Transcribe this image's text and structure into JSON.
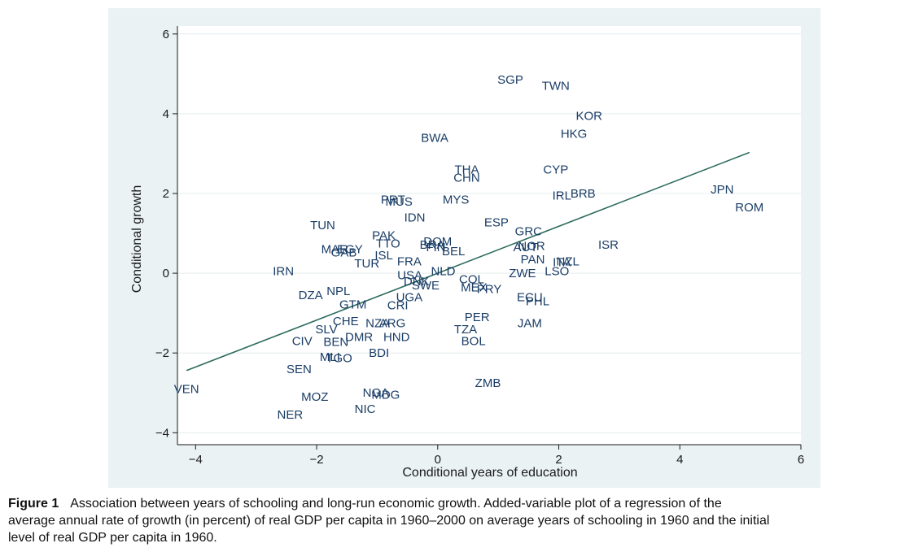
{
  "chart_data": {
    "type": "scatter",
    "xlabel": "Conditional years of education",
    "ylabel": "Conditional growth",
    "xlim": [
      -4.3,
      6.0
    ],
    "ylim": [
      -4.3,
      6.2
    ],
    "xticks": [
      -4,
      -2,
      0,
      2,
      4,
      6
    ],
    "yticks": [
      -4,
      -2,
      0,
      2,
      4,
      6
    ],
    "xtick_labels": [
      "−4",
      "−2",
      "0",
      "2",
      "4",
      "6"
    ],
    "ytick_labels": [
      "−4",
      "−2",
      "0",
      "2",
      "4",
      "6"
    ],
    "grid": "horizontal",
    "marker": "country-code text labels",
    "fit_line": {
      "x": [
        -4.15,
        5.15
      ],
      "y": [
        -2.44,
        3.03
      ],
      "color": "#2d6b5e"
    },
    "points": [
      {
        "label": "SGP",
        "x": 1.2,
        "y": 4.85
      },
      {
        "label": "TWN",
        "x": 1.95,
        "y": 4.7
      },
      {
        "label": "KOR",
        "x": 2.5,
        "y": 3.95
      },
      {
        "label": "HKG",
        "x": 2.25,
        "y": 3.5
      },
      {
        "label": "BWA",
        "x": -0.05,
        "y": 3.4
      },
      {
        "label": "THA",
        "x": 0.48,
        "y": 2.6
      },
      {
        "label": "CHN",
        "x": 0.48,
        "y": 2.4
      },
      {
        "label": "CYP",
        "x": 1.95,
        "y": 2.6
      },
      {
        "label": "IRL",
        "x": 2.05,
        "y": 1.95
      },
      {
        "label": "BRB",
        "x": 2.4,
        "y": 2.0
      },
      {
        "label": "JPN",
        "x": 4.7,
        "y": 2.1
      },
      {
        "label": "ROM",
        "x": 5.15,
        "y": 1.65
      },
      {
        "label": "PRT",
        "x": -0.74,
        "y": 1.85
      },
      {
        "label": "MUS",
        "x": -0.64,
        "y": 1.8
      },
      {
        "label": "MYS",
        "x": 0.3,
        "y": 1.85
      },
      {
        "label": "IDN",
        "x": -0.38,
        "y": 1.4
      },
      {
        "label": "ESP",
        "x": 0.97,
        "y": 1.28
      },
      {
        "label": "TUN",
        "x": -1.9,
        "y": 1.2
      },
      {
        "label": "GRC",
        "x": 1.5,
        "y": 1.05
      },
      {
        "label": "PAK",
        "x": -0.89,
        "y": 0.95
      },
      {
        "label": "TTO",
        "x": -0.82,
        "y": 0.75
      },
      {
        "label": "DOM",
        "x": 0.0,
        "y": 0.8
      },
      {
        "label": "BRA",
        "x": -0.09,
        "y": 0.72
      },
      {
        "label": "NOR",
        "x": 1.55,
        "y": 0.68
      },
      {
        "label": "AUT",
        "x": 1.45,
        "y": 0.65
      },
      {
        "label": "ISR",
        "x": 2.82,
        "y": 0.72
      },
      {
        "label": "MAR",
        "x": -1.7,
        "y": 0.6
      },
      {
        "label": "EGY",
        "x": -1.45,
        "y": 0.6
      },
      {
        "label": "GAB",
        "x": -1.55,
        "y": 0.52
      },
      {
        "label": "ISL",
        "x": -0.89,
        "y": 0.45
      },
      {
        "label": "FIN",
        "x": -0.03,
        "y": 0.65
      },
      {
        "label": "BEL",
        "x": 0.26,
        "y": 0.55
      },
      {
        "label": "FRA",
        "x": -0.47,
        "y": 0.3
      },
      {
        "label": "TUR",
        "x": -1.17,
        "y": 0.25
      },
      {
        "label": "PAN",
        "x": 1.57,
        "y": 0.35
      },
      {
        "label": "ITA",
        "x": 2.05,
        "y": 0.28
      },
      {
        "label": "NZL",
        "x": 2.15,
        "y": 0.3
      },
      {
        "label": "LSO",
        "x": 1.97,
        "y": 0.05
      },
      {
        "label": "IRN",
        "x": -2.55,
        "y": 0.05
      },
      {
        "label": "USA",
        "x": -0.46,
        "y": -0.05
      },
      {
        "label": "NLD",
        "x": 0.09,
        "y": 0.05
      },
      {
        "label": "ZWE",
        "x": 1.4,
        "y": 0.0
      },
      {
        "label": "DNK",
        "x": -0.35,
        "y": -0.2
      },
      {
        "label": "SWE",
        "x": -0.2,
        "y": -0.3
      },
      {
        "label": "COL",
        "x": 0.56,
        "y": -0.15
      },
      {
        "label": "MEX",
        "x": 0.6,
        "y": -0.35
      },
      {
        "label": "PRY",
        "x": 0.85,
        "y": -0.4
      },
      {
        "label": "DZA",
        "x": -2.1,
        "y": -0.55
      },
      {
        "label": "NPL",
        "x": -1.64,
        "y": -0.45
      },
      {
        "label": "ECU",
        "x": 1.52,
        "y": -0.6
      },
      {
        "label": "PHL",
        "x": 1.65,
        "y": -0.7
      },
      {
        "label": "GTM",
        "x": -1.4,
        "y": -0.78
      },
      {
        "label": "UGA",
        "x": -0.47,
        "y": -0.6
      },
      {
        "label": "CRI",
        "x": -0.66,
        "y": -0.8
      },
      {
        "label": "PER",
        "x": 0.65,
        "y": -1.1
      },
      {
        "label": "JAM",
        "x": 1.52,
        "y": -1.25
      },
      {
        "label": "CHE",
        "x": -1.52,
        "y": -1.2
      },
      {
        "label": "NZA",
        "x": -0.99,
        "y": -1.25
      },
      {
        "label": "ARG",
        "x": -0.75,
        "y": -1.25
      },
      {
        "label": "TZA",
        "x": 0.46,
        "y": -1.4
      },
      {
        "label": "SLV",
        "x": -1.84,
        "y": -1.4
      },
      {
        "label": "DMR",
        "x": -1.3,
        "y": -1.6
      },
      {
        "label": "HND",
        "x": -0.68,
        "y": -1.6
      },
      {
        "label": "BOL",
        "x": 0.59,
        "y": -1.7
      },
      {
        "label": "BEN",
        "x": -1.68,
        "y": -1.72
      },
      {
        "label": "CIV",
        "x": -2.24,
        "y": -1.7
      },
      {
        "label": "BDI",
        "x": -0.97,
        "y": -2.0
      },
      {
        "label": "MLI",
        "x": -1.78,
        "y": -2.1
      },
      {
        "label": "TGO",
        "x": -1.63,
        "y": -2.13
      },
      {
        "label": "SEN",
        "x": -2.29,
        "y": -2.4
      },
      {
        "label": "ZMB",
        "x": 0.83,
        "y": -2.75
      },
      {
        "label": "VEN",
        "x": -4.15,
        "y": -2.9
      },
      {
        "label": "NGA",
        "x": -1.02,
        "y": -3.0
      },
      {
        "label": "MDG",
        "x": -0.86,
        "y": -3.05
      },
      {
        "label": "MOZ",
        "x": -2.03,
        "y": -3.1
      },
      {
        "label": "NIC",
        "x": -1.2,
        "y": -3.4
      },
      {
        "label": "NER",
        "x": -2.44,
        "y": -3.55
      }
    ]
  },
  "caption": {
    "label": "Figure 1",
    "line1": "Association between years of schooling and long-run economic growth. Added-variable plot of a regression of the",
    "line2": "average annual rate of growth (in percent) of real GDP per capita in 1960–2000 on average years of schooling in 1960 and the initial",
    "line3": "level of real GDP per capita in 1960."
  }
}
